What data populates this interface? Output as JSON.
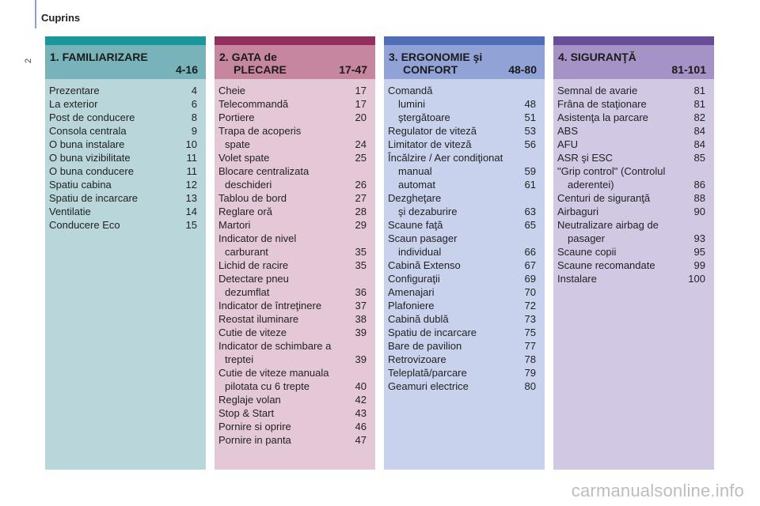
{
  "header": {
    "title": "Cuprins",
    "page_number": "2"
  },
  "watermark": "carmanualsonline.info",
  "sections": [
    {
      "title_line1": "1. FAMILIARIZARE",
      "title_line2": "",
      "pages": "4-16",
      "items": [
        {
          "t": "Prezentare",
          "p": "4"
        },
        {
          "t": "La exterior",
          "p": "6"
        },
        {
          "t": "Post de conducere",
          "p": "8"
        },
        {
          "t": "Consola centrala",
          "p": "9"
        },
        {
          "t": "O buna instalare",
          "p": "10"
        },
        {
          "t": "O buna vizibilitate",
          "p": "11"
        },
        {
          "t": "O buna conducere",
          "p": "11"
        },
        {
          "t": "Spatiu cabina",
          "p": "12"
        },
        {
          "t": "Spatiu de incarcare",
          "p": "13"
        },
        {
          "t": "Ventilatie",
          "p": "14"
        },
        {
          "t": "Conducere Eco",
          "p": "15"
        }
      ]
    },
    {
      "title_line1": "2. GATA de",
      "title_line2": "PLECARE",
      "pages": "17-47",
      "items": [
        {
          "t": "Cheie",
          "p": "17"
        },
        {
          "t": "Telecommandă",
          "p": "17"
        },
        {
          "t": "Portiere",
          "p": "20"
        },
        {
          "t": "Trapa de acoperis",
          "p": ""
        },
        {
          "t": "spate",
          "p": "24",
          "indent": true
        },
        {
          "t": "Volet spate",
          "p": "25"
        },
        {
          "t": "Blocare centralizata",
          "p": ""
        },
        {
          "t": "deschideri",
          "p": "26",
          "indent": true
        },
        {
          "t": "Tablou de bord",
          "p": "27"
        },
        {
          "t": "Reglare oră",
          "p": "28"
        },
        {
          "t": "Martori",
          "p": "29"
        },
        {
          "t": "Indicator de nivel",
          "p": ""
        },
        {
          "t": "carburant",
          "p": "35",
          "indent": true
        },
        {
          "t": "Lichid de racire",
          "p": "35"
        },
        {
          "t": "Detectare pneu",
          "p": ""
        },
        {
          "t": "dezumflat",
          "p": "36",
          "indent": true
        },
        {
          "t": "Indicator de întreţinere",
          "p": "37"
        },
        {
          "t": "Reostat iluminare",
          "p": "38"
        },
        {
          "t": "Cutie de viteze",
          "p": "39"
        },
        {
          "t": "Indicator de schimbare a",
          "p": ""
        },
        {
          "t": "treptei",
          "p": "39",
          "indent": true
        },
        {
          "t": "Cutie de viteze manuala",
          "p": ""
        },
        {
          "t": "pilotata cu 6 trepte",
          "p": "40",
          "indent": true
        },
        {
          "t": "Reglaje volan",
          "p": "42"
        },
        {
          "t": "Stop & Start",
          "p": "43"
        },
        {
          "t": "Pornire si oprire",
          "p": "46"
        },
        {
          "t": "Pornire in panta",
          "p": "47"
        }
      ]
    },
    {
      "title_line1": "3. ERGONOMIE şi",
      "title_line2": "CONFORT",
      "pages": "48-80",
      "items": [
        {
          "t": "Comandă",
          "p": ""
        },
        {
          "t": "lumini",
          "p": "48",
          "indent": true
        },
        {
          "t": "ştergătoare",
          "p": "51",
          "indent": true
        },
        {
          "t": "Regulator de viteză",
          "p": "53"
        },
        {
          "t": "Limitator de viteză",
          "p": "56"
        },
        {
          "t": "Încălzire / Aer condiţionat",
          "p": ""
        },
        {
          "t": "manual",
          "p": "59",
          "indent": true
        },
        {
          "t": "automat",
          "p": "61",
          "indent": true
        },
        {
          "t": "Dezgheţare",
          "p": ""
        },
        {
          "t": "şi dezaburire",
          "p": "63",
          "indent": true
        },
        {
          "t": "Scaune faţă",
          "p": "65"
        },
        {
          "t": "Scaun pasager",
          "p": ""
        },
        {
          "t": "individual",
          "p": "66",
          "indent": true
        },
        {
          "t": "Cabină Extenso",
          "p": "67"
        },
        {
          "t": "Configuraţii",
          "p": "69"
        },
        {
          "t": "Amenajari",
          "p": "70"
        },
        {
          "t": "Plafoniere",
          "p": "72"
        },
        {
          "t": "Cabină dublă",
          "p": "73"
        },
        {
          "t": "Spatiu de incarcare",
          "p": "75"
        },
        {
          "t": "Bare de pavilion",
          "p": "77"
        },
        {
          "t": "Retrovizoare",
          "p": "78"
        },
        {
          "t": "Teleplată/parcare",
          "p": "79"
        },
        {
          "t": "Geamuri electrice",
          "p": "80"
        }
      ]
    },
    {
      "title_line1": "4. SIGURANŢĂ",
      "title_line2": "",
      "pages": "81-101",
      "items": [
        {
          "t": "Semnal de avarie",
          "p": "81"
        },
        {
          "t": "Frâna de staţionare",
          "p": "81"
        },
        {
          "t": "Asistenţa la parcare",
          "p": "82"
        },
        {
          "t": "ABS",
          "p": "84"
        },
        {
          "t": "AFU",
          "p": "84"
        },
        {
          "t": "ASR şi ESC",
          "p": "85"
        },
        {
          "t": "\"Grip control\" (Controlul",
          "p": ""
        },
        {
          "t": "aderentei)",
          "p": "86",
          "indent": true
        },
        {
          "t": "Centuri de siguranţă",
          "p": "88"
        },
        {
          "t": "Airbaguri",
          "p": "90"
        },
        {
          "t": "Neutralizare airbag de",
          "p": ""
        },
        {
          "t": "pasager",
          "p": "93",
          "indent": true
        },
        {
          "t": "Scaune copii",
          "p": "95"
        },
        {
          "t": "Scaune recomandate",
          "p": "99"
        },
        {
          "t": "Instalare",
          "p": "100"
        }
      ]
    }
  ]
}
